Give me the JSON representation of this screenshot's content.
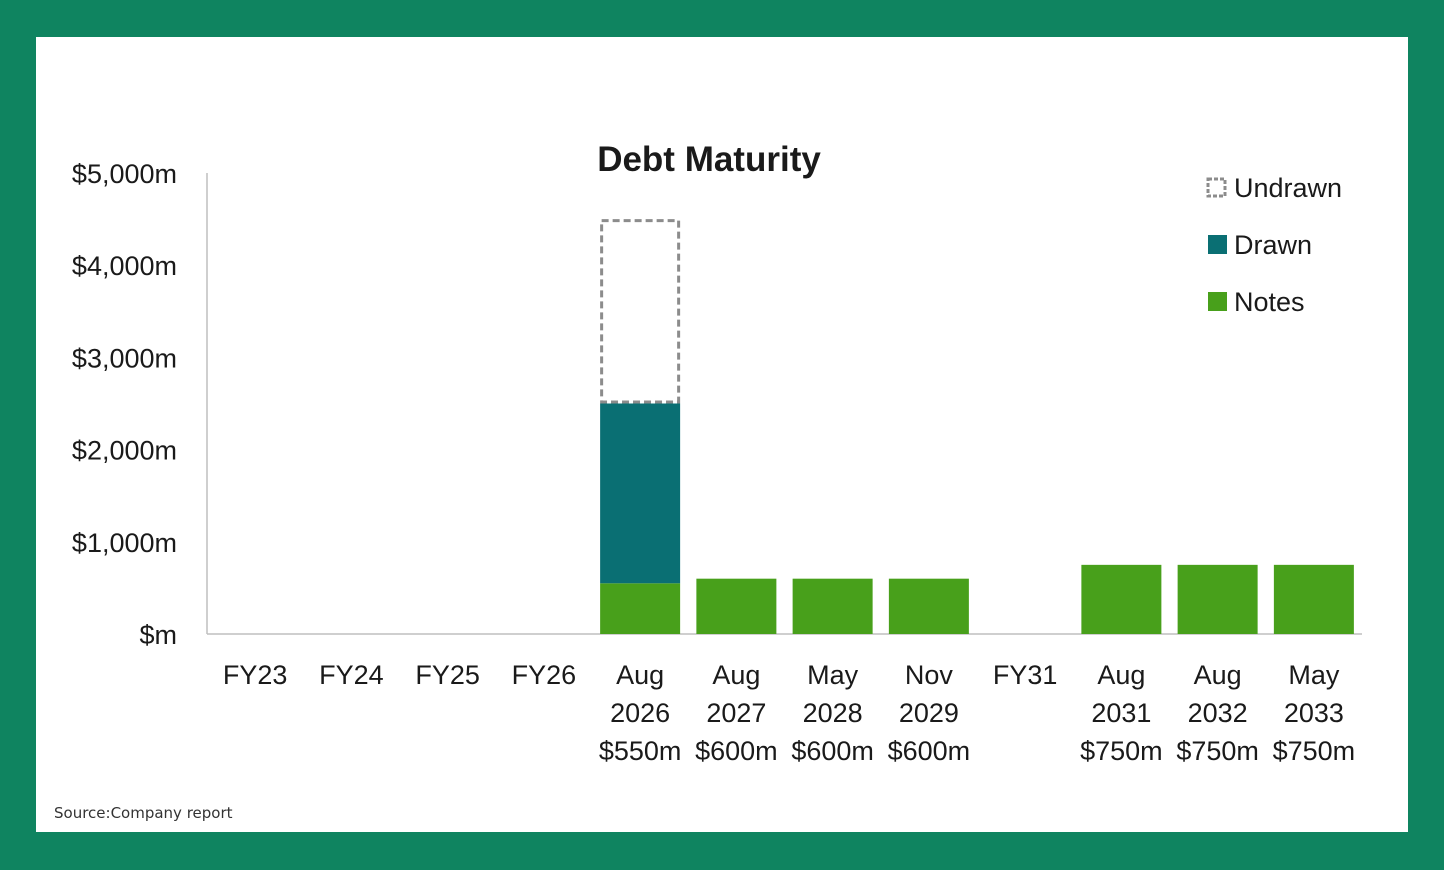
{
  "source_note": "Source:Company report",
  "colors": {
    "frame": "#0f8460",
    "notes": "#48a01b",
    "drawn": "#0a6f73",
    "undrawn_border": "#8c8c8c"
  },
  "chart_data": {
    "type": "bar",
    "stacked": true,
    "title": "Debt Maturity",
    "xlabel": "",
    "ylabel": "",
    "ylim": [
      0,
      5000
    ],
    "yticks": [
      {
        "value": 0,
        "label": "$m"
      },
      {
        "value": 1000,
        "label": "$1,000m"
      },
      {
        "value": 2000,
        "label": "$2,000m"
      },
      {
        "value": 3000,
        "label": "$3,000m"
      },
      {
        "value": 4000,
        "label": "$4,000m"
      },
      {
        "value": 5000,
        "label": "$5,000m"
      }
    ],
    "grid": false,
    "legend_position": "top-right",
    "categories": [
      [
        "FY23"
      ],
      [
        "FY24"
      ],
      [
        "FY25"
      ],
      [
        "FY26"
      ],
      [
        "Aug",
        "2026",
        "$550m"
      ],
      [
        "Aug",
        "2027",
        "$600m"
      ],
      [
        "May",
        "2028",
        "$600m"
      ],
      [
        "Nov",
        "2029",
        "$600m"
      ],
      [
        "FY31"
      ],
      [
        "Aug",
        "2031",
        "$750m"
      ],
      [
        "Aug",
        "2032",
        "$750m"
      ],
      [
        "May",
        "2033",
        "$750m"
      ]
    ],
    "series": [
      {
        "name": "Notes",
        "color": "#48a01b",
        "values": [
          0,
          0,
          0,
          0,
          550,
          600,
          600,
          600,
          0,
          750,
          750,
          750
        ]
      },
      {
        "name": "Drawn",
        "color": "#0a6f73",
        "values": [
          0,
          0,
          0,
          0,
          1950,
          0,
          0,
          0,
          0,
          0,
          0,
          0
        ]
      },
      {
        "name": "Undrawn",
        "color": "#8c8c8c",
        "dashed": true,
        "values": [
          0,
          0,
          0,
          0,
          2000,
          0,
          0,
          0,
          0,
          0,
          0,
          0
        ]
      }
    ],
    "legend_order": [
      "Undrawn",
      "Drawn",
      "Notes"
    ]
  }
}
